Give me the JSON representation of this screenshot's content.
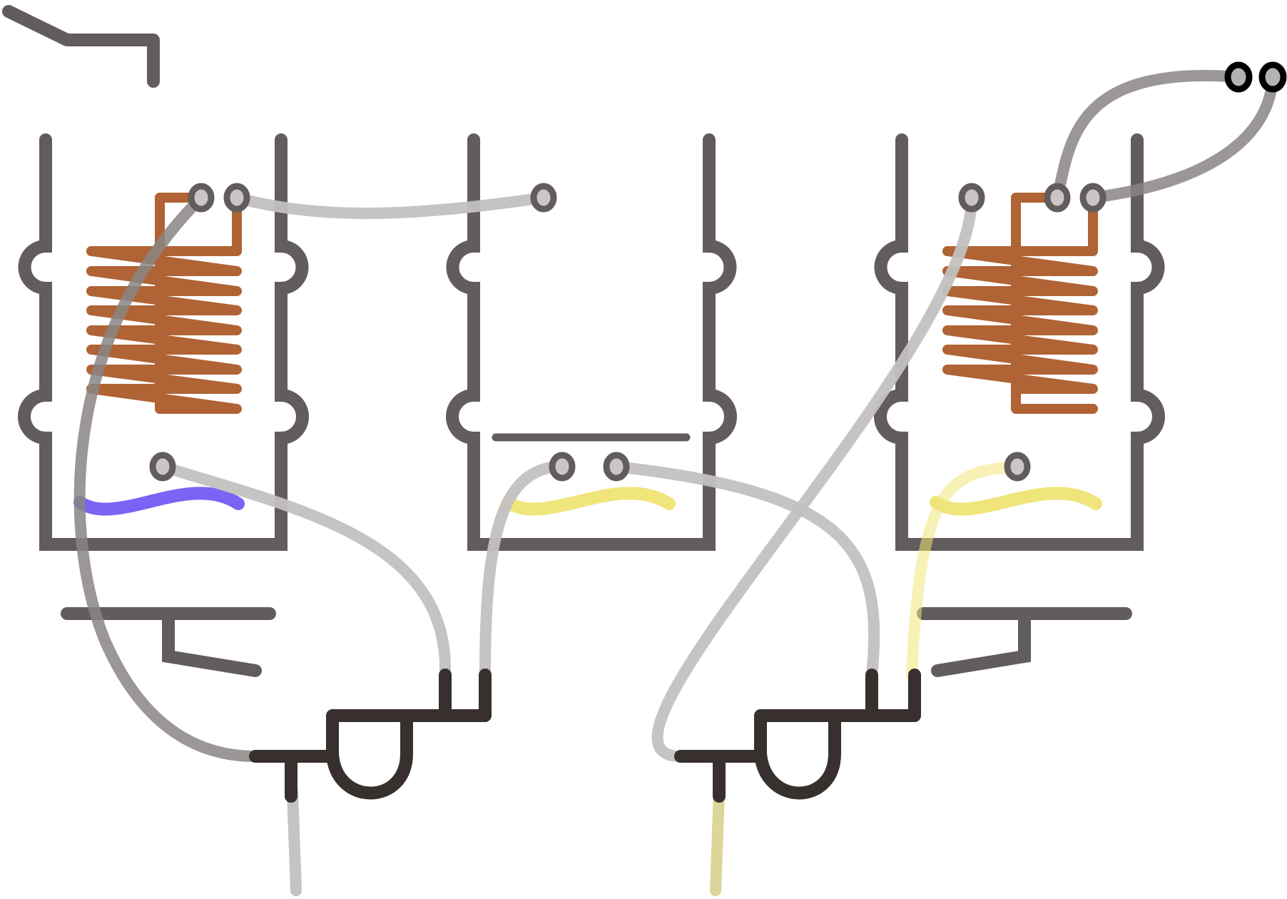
{
  "colors": {
    "vessel": "#625c5c",
    "coil": "#b06335",
    "pipe": "#37302f",
    "tube_light": "#c2c1bf",
    "tube_dark": "#8a8584",
    "liquid_blue": "#7b63f5",
    "liquid_yellow": "#f0e57a",
    "background": "#ffffff"
  },
  "components": {
    "bath_1": {
      "name": "water-bath-left",
      "heater": "coil-icon",
      "liquid": "blue-liquid"
    },
    "bath_2": {
      "name": "water-bath-middle",
      "heater": "none",
      "liquid": "yellow-liquid"
    },
    "bath_3": {
      "name": "water-bath-right",
      "heater": "coil-icon",
      "liquid": "yellow-liquid"
    },
    "manifold_1": "y-connector-left",
    "manifold_2": "y-connector-right"
  }
}
